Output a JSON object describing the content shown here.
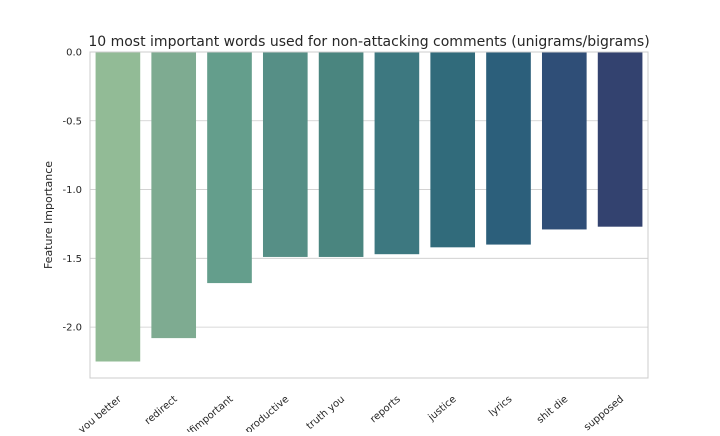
{
  "chart_data": {
    "type": "bar",
    "title": "10 most important words used for non-attacking comments (unigrams/bigrams)",
    "xlabel": "",
    "ylabel": "Feature Importance",
    "categories": [
      "you better",
      "redirect",
      "selfimportant",
      "productive",
      "truth you",
      "reports",
      "justice",
      "lyrics",
      "shit die",
      "supposed"
    ],
    "values": [
      -2.25,
      -2.08,
      -1.68,
      -1.49,
      -1.49,
      -1.47,
      -1.42,
      -1.4,
      -1.29,
      -1.27
    ],
    "ylim": [
      -2.37,
      0.0
    ],
    "yticks": [
      "-2.0",
      "-1.5",
      "-1.0",
      "-0.5",
      "0.0"
    ],
    "ytick_values": [
      -2.0,
      -1.5,
      -1.0,
      -0.5,
      0.0
    ],
    "grid": "horizontal",
    "palette": [
      "#92bb96",
      "#7eab91",
      "#649e8c",
      "#568f86",
      "#4a857f",
      "#3d7880",
      "#316b7b",
      "#2c5f7b",
      "#2f4e77",
      "#33426f"
    ]
  }
}
